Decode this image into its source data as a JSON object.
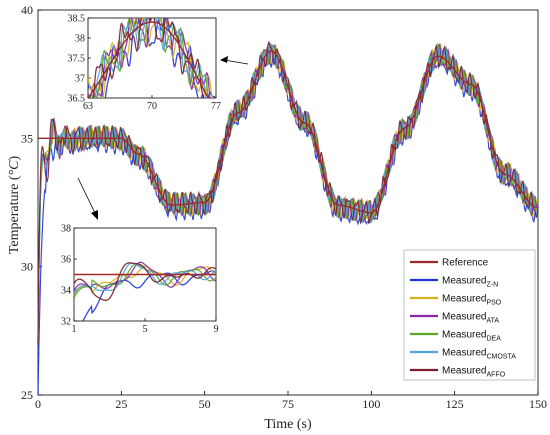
{
  "chart_data": {
    "type": "line",
    "xlabel": "Time (s)",
    "ylabel": "Temperature (°C)",
    "ylabel_unit": "°C",
    "xlim": [
      0,
      150
    ],
    "ylim": [
      25,
      40
    ],
    "xticks": [
      0,
      25,
      50,
      75,
      100,
      125,
      150
    ],
    "yticks": [
      25,
      30,
      35,
      40
    ],
    "legend_position": "bottom-right",
    "legend": [
      {
        "key": "ref",
        "label": "Reference",
        "sub": "",
        "color": "#a0282c"
      },
      {
        "key": "zn",
        "label": "Measured",
        "sub": "Z-N",
        "color": "#1f35d6"
      },
      {
        "key": "pso",
        "label": "Measured",
        "sub": "PSO",
        "color": "#d6b21c"
      },
      {
        "key": "ata",
        "label": "Measured",
        "sub": "ATA",
        "color": "#8a2aa6"
      },
      {
        "key": "dea",
        "label": "Measured",
        "sub": "DEA",
        "color": "#5aa62a"
      },
      {
        "key": "cmosta",
        "label": "Measured",
        "sub": "CMOSTA",
        "color": "#4fa6e0"
      },
      {
        "key": "affo",
        "label": "Measured",
        "sub": "AFFO",
        "color": "#7a1e28"
      }
    ],
    "series": [
      {
        "name": "Reference",
        "x": [
          0,
          25,
          30,
          40,
          50,
          60,
          70,
          80,
          90,
          100,
          110,
          120,
          130,
          140,
          150
        ],
        "values": [
          35,
          35,
          34.4,
          32.4,
          32.5,
          36.0,
          38.4,
          35.6,
          32.4,
          32.1,
          35.4,
          38.2,
          37.1,
          33.6,
          32.3
        ]
      },
      {
        "name": "Measured Z-N",
        "x": [
          0,
          0.5,
          1,
          2,
          3,
          4,
          5,
          6,
          8,
          10,
          15,
          20,
          25,
          30,
          40,
          50,
          60,
          70,
          80,
          90,
          100,
          110,
          120,
          130,
          140,
          150
        ],
        "values": [
          25,
          27,
          30.5,
          33,
          34.2,
          34.6,
          34.8,
          34.9,
          35.0,
          35.1,
          35.2,
          35.3,
          35.2,
          34.6,
          32.6,
          32.4,
          36.0,
          38.5,
          35.8,
          32.6,
          32.0,
          35.5,
          38.3,
          37.2,
          33.8,
          32.4
        ]
      }
    ],
    "insets": [
      {
        "xlim": [
          63,
          77
        ],
        "ylim": [
          36.5,
          38.5
        ],
        "xticks": [
          63,
          70,
          77
        ],
        "yticks": [
          36.5,
          37,
          37.5,
          38,
          38.5
        ]
      },
      {
        "xlim": [
          1,
          9
        ],
        "ylim": [
          32,
          38
        ],
        "xticks": [
          1,
          5,
          9
        ],
        "yticks": [
          32,
          34,
          36,
          38
        ],
        "reference": 35
      }
    ]
  }
}
